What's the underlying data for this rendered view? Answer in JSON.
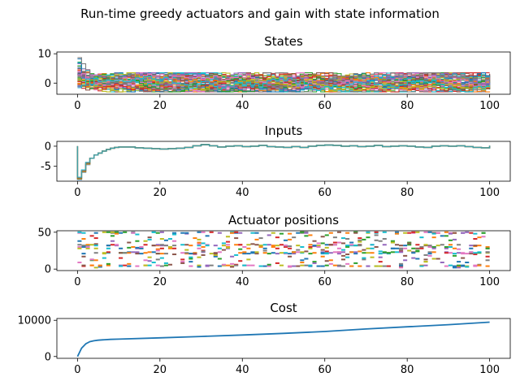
{
  "figure_title": "Run-time greedy actuators and gain with state information",
  "chart_data": [
    {
      "type": "line",
      "title": "States",
      "xlabel": "",
      "ylabel": "",
      "xlim": [
        -5,
        105
      ],
      "ylim": [
        -3.8,
        10.6
      ],
      "xticks": [
        0,
        20,
        40,
        60,
        80,
        100
      ],
      "yticks": [
        0,
        10
      ],
      "step": true,
      "series_count": 50,
      "x_range": [
        0,
        100
      ],
      "initial_spread": [
        -2,
        9
      ],
      "steady_spread": [
        -3,
        3.5
      ],
      "grid": false,
      "legend": "none"
    },
    {
      "type": "line",
      "title": "Inputs",
      "xlabel": "",
      "ylabel": "",
      "xlim": [
        -5,
        105
      ],
      "ylim": [
        -8.7,
        1.2
      ],
      "xticks": [
        0,
        20,
        40,
        60,
        80,
        100
      ],
      "yticks": [
        -5,
        0
      ],
      "step": true,
      "series_count": 5,
      "x": [
        0,
        1,
        2,
        3,
        4,
        5,
        6,
        7,
        8,
        9,
        10,
        12,
        14,
        16,
        18,
        20,
        22,
        24,
        26,
        28,
        30,
        32,
        34,
        36,
        38,
        40,
        42,
        44,
        46,
        48,
        50,
        52,
        54,
        56,
        58,
        60,
        62,
        64,
        66,
        68,
        70,
        72,
        74,
        76,
        78,
        80,
        82,
        84,
        86,
        88,
        90,
        92,
        94,
        96,
        98,
        100
      ],
      "values": [
        -8.0,
        -6.2,
        -4.3,
        -3.0,
        -2.2,
        -1.7,
        -1.2,
        -0.8,
        -0.5,
        -0.3,
        -0.2,
        -0.2,
        -0.4,
        -0.5,
        -0.6,
        -0.7,
        -0.6,
        -0.5,
        -0.3,
        0.1,
        0.4,
        0.1,
        -0.2,
        0.0,
        0.1,
        -0.1,
        0.0,
        0.2,
        -0.1,
        -0.2,
        -0.3,
        -0.1,
        -0.3,
        0.0,
        0.2,
        0.3,
        0.2,
        0.0,
        0.1,
        -0.1,
        0.0,
        0.2,
        -0.1,
        0.0,
        0.1,
        0.0,
        -0.2,
        -0.3,
        0.0,
        0.1,
        0.0,
        0.1,
        -0.1,
        -0.3,
        -0.4,
        0.1
      ],
      "grid": false,
      "legend": "none"
    },
    {
      "type": "scatter",
      "title": "Actuator positions",
      "xlabel": "",
      "ylabel": "",
      "xlim": [
        -5,
        105
      ],
      "ylim": [
        -2,
        52
      ],
      "xticks": [
        0,
        20,
        40,
        60,
        80,
        100
      ],
      "yticks": [
        0,
        50
      ],
      "marker": "horizontal segment",
      "x_range": [
        0,
        99
      ],
      "y_range": [
        2,
        50
      ],
      "actuators_per_step": 10,
      "grid": false,
      "legend": "none"
    },
    {
      "type": "line",
      "title": "Cost",
      "xlabel": "",
      "ylabel": "",
      "xlim": [
        -5,
        105
      ],
      "ylim": [
        -500,
        10500
      ],
      "xticks": [
        0,
        20,
        40,
        60,
        80,
        100
      ],
      "yticks": [
        0,
        10000
      ],
      "x": [
        0,
        1,
        2,
        3,
        4,
        5,
        6,
        8,
        10,
        20,
        30,
        40,
        50,
        60,
        70,
        80,
        90,
        100
      ],
      "values": [
        0,
        2300,
        3500,
        4100,
        4350,
        4500,
        4600,
        4720,
        4800,
        5150,
        5550,
        5950,
        6400,
        6900,
        7600,
        8200,
        8800,
        9500
      ],
      "grid": false,
      "legend": "none"
    }
  ],
  "palette": [
    "#1f77b4",
    "#ff7f0e",
    "#2ca02c",
    "#d62728",
    "#9467bd",
    "#8c564b",
    "#e377c2",
    "#7f7f7f",
    "#bcbd22",
    "#17becf"
  ]
}
